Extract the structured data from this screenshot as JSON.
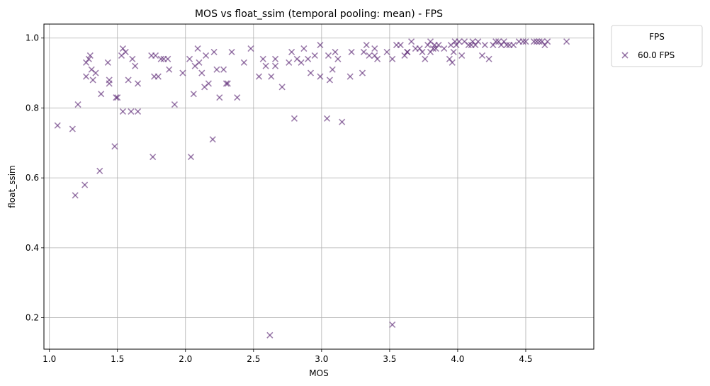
{
  "chart_data": {
    "type": "scatter",
    "title": "MOS vs float_ssim (temporal pooling: mean) - FPS",
    "xlabel": "MOS",
    "ylabel": "float_ssim",
    "xlim": [
      0.96,
      5.0
    ],
    "ylim": [
      0.11,
      1.04
    ],
    "xticks": [
      1.0,
      1.5,
      2.0,
      2.5,
      3.0,
      3.5,
      4.0,
      4.5
    ],
    "xtick_labels": [
      "1.0",
      "1.5",
      "2.0",
      "2.5",
      "3.0",
      "3.5",
      "4.0",
      "4.5"
    ],
    "yticks": [
      0.2,
      0.4,
      0.6,
      0.8,
      1.0
    ],
    "ytick_labels": [
      "0.2",
      "0.4",
      "0.6",
      "0.8",
      "1.0"
    ],
    "grid": true,
    "legend": {
      "title": "FPS",
      "placement": "outside-top-right"
    },
    "marker": "x",
    "color": "#5e2a76",
    "series": [
      {
        "name": "60.0 FPS",
        "points": [
          [
            1.06,
            0.75
          ],
          [
            1.17,
            0.74
          ],
          [
            1.19,
            0.55
          ],
          [
            1.21,
            0.81
          ],
          [
            1.26,
            0.58
          ],
          [
            1.27,
            0.89
          ],
          [
            1.27,
            0.93
          ],
          [
            1.29,
            0.94
          ],
          [
            1.3,
            0.95
          ],
          [
            1.31,
            0.91
          ],
          [
            1.32,
            0.88
          ],
          [
            1.34,
            0.9
          ],
          [
            1.37,
            0.62
          ],
          [
            1.38,
            0.84
          ],
          [
            1.43,
            0.93
          ],
          [
            1.44,
            0.88
          ],
          [
            1.44,
            0.87
          ],
          [
            1.48,
            0.69
          ],
          [
            1.49,
            0.83
          ],
          [
            1.5,
            0.83
          ],
          [
            1.53,
            0.95
          ],
          [
            1.54,
            0.97
          ],
          [
            1.54,
            0.79
          ],
          [
            1.56,
            0.96
          ],
          [
            1.58,
            0.88
          ],
          [
            1.6,
            0.79
          ],
          [
            1.61,
            0.94
          ],
          [
            1.63,
            0.92
          ],
          [
            1.65,
            0.87
          ],
          [
            1.65,
            0.79
          ],
          [
            1.75,
            0.95
          ],
          [
            1.76,
            0.66
          ],
          [
            1.77,
            0.89
          ],
          [
            1.78,
            0.95
          ],
          [
            1.8,
            0.89
          ],
          [
            1.82,
            0.94
          ],
          [
            1.84,
            0.94
          ],
          [
            1.87,
            0.94
          ],
          [
            1.88,
            0.91
          ],
          [
            1.92,
            0.81
          ],
          [
            1.98,
            0.9
          ],
          [
            2.03,
            0.94
          ],
          [
            2.04,
            0.66
          ],
          [
            2.06,
            0.84
          ],
          [
            2.07,
            0.92
          ],
          [
            2.09,
            0.97
          ],
          [
            2.1,
            0.93
          ],
          [
            2.12,
            0.9
          ],
          [
            2.14,
            0.86
          ],
          [
            2.15,
            0.95
          ],
          [
            2.17,
            0.87
          ],
          [
            2.2,
            0.71
          ],
          [
            2.21,
            0.96
          ],
          [
            2.23,
            0.91
          ],
          [
            2.25,
            0.83
          ],
          [
            2.28,
            0.91
          ],
          [
            2.3,
            0.87
          ],
          [
            2.31,
            0.87
          ],
          [
            2.34,
            0.96
          ],
          [
            2.38,
            0.83
          ],
          [
            2.43,
            0.93
          ],
          [
            2.48,
            0.97
          ],
          [
            2.54,
            0.89
          ],
          [
            2.57,
            0.94
          ],
          [
            2.59,
            0.92
          ],
          [
            2.62,
            0.15
          ],
          [
            2.63,
            0.89
          ],
          [
            2.66,
            0.94
          ],
          [
            2.66,
            0.92
          ],
          [
            2.71,
            0.86
          ],
          [
            2.76,
            0.93
          ],
          [
            2.78,
            0.96
          ],
          [
            2.8,
            0.77
          ],
          [
            2.82,
            0.94
          ],
          [
            2.85,
            0.93
          ],
          [
            2.87,
            0.97
          ],
          [
            2.9,
            0.94
          ],
          [
            2.92,
            0.9
          ],
          [
            2.95,
            0.95
          ],
          [
            2.99,
            0.98
          ],
          [
            2.99,
            0.89
          ],
          [
            3.04,
            0.77
          ],
          [
            3.05,
            0.95
          ],
          [
            3.06,
            0.88
          ],
          [
            3.08,
            0.91
          ],
          [
            3.1,
            0.96
          ],
          [
            3.12,
            0.94
          ],
          [
            3.15,
            0.76
          ],
          [
            3.21,
            0.89
          ],
          [
            3.22,
            0.96
          ],
          [
            3.3,
            0.9
          ],
          [
            3.31,
            0.96
          ],
          [
            3.33,
            0.98
          ],
          [
            3.35,
            0.95
          ],
          [
            3.39,
            0.95
          ],
          [
            3.39,
            0.97
          ],
          [
            3.41,
            0.94
          ],
          [
            3.48,
            0.96
          ],
          [
            3.52,
            0.94
          ],
          [
            3.52,
            0.18
          ],
          [
            3.55,
            0.98
          ],
          [
            3.58,
            0.98
          ],
          [
            3.61,
            0.95
          ],
          [
            3.63,
            0.96
          ],
          [
            3.63,
            0.96
          ],
          [
            3.66,
            0.99
          ],
          [
            3.69,
            0.97
          ],
          [
            3.72,
            0.97
          ],
          [
            3.74,
            0.96
          ],
          [
            3.76,
            0.94
          ],
          [
            3.78,
            0.98
          ],
          [
            3.8,
            0.96
          ],
          [
            3.8,
            0.99
          ],
          [
            3.82,
            0.97
          ],
          [
            3.83,
            0.98
          ],
          [
            3.84,
            0.97
          ],
          [
            3.86,
            0.98
          ],
          [
            3.9,
            0.97
          ],
          [
            3.94,
            0.94
          ],
          [
            3.95,
            0.98
          ],
          [
            3.96,
            0.93
          ],
          [
            3.97,
            0.96
          ],
          [
            3.98,
            0.99
          ],
          [
            3.99,
            0.98
          ],
          [
            4.01,
            0.99
          ],
          [
            4.03,
            0.95
          ],
          [
            4.05,
            0.99
          ],
          [
            4.08,
            0.98
          ],
          [
            4.1,
            0.98
          ],
          [
            4.11,
            0.99
          ],
          [
            4.13,
            0.98
          ],
          [
            4.15,
            0.99
          ],
          [
            4.18,
            0.95
          ],
          [
            4.2,
            0.98
          ],
          [
            4.23,
            0.94
          ],
          [
            4.26,
            0.98
          ],
          [
            4.28,
            0.99
          ],
          [
            4.3,
            0.99
          ],
          [
            4.32,
            0.98
          ],
          [
            4.34,
            0.99
          ],
          [
            4.36,
            0.98
          ],
          [
            4.38,
            0.98
          ],
          [
            4.41,
            0.98
          ],
          [
            4.45,
            0.99
          ],
          [
            4.48,
            0.99
          ],
          [
            4.5,
            0.99
          ],
          [
            4.56,
            0.99
          ],
          [
            4.58,
            0.99
          ],
          [
            4.6,
            0.99
          ],
          [
            4.62,
            0.99
          ],
          [
            4.64,
            0.98
          ],
          [
            4.66,
            0.99
          ],
          [
            4.8,
            0.99
          ]
        ]
      }
    ]
  }
}
